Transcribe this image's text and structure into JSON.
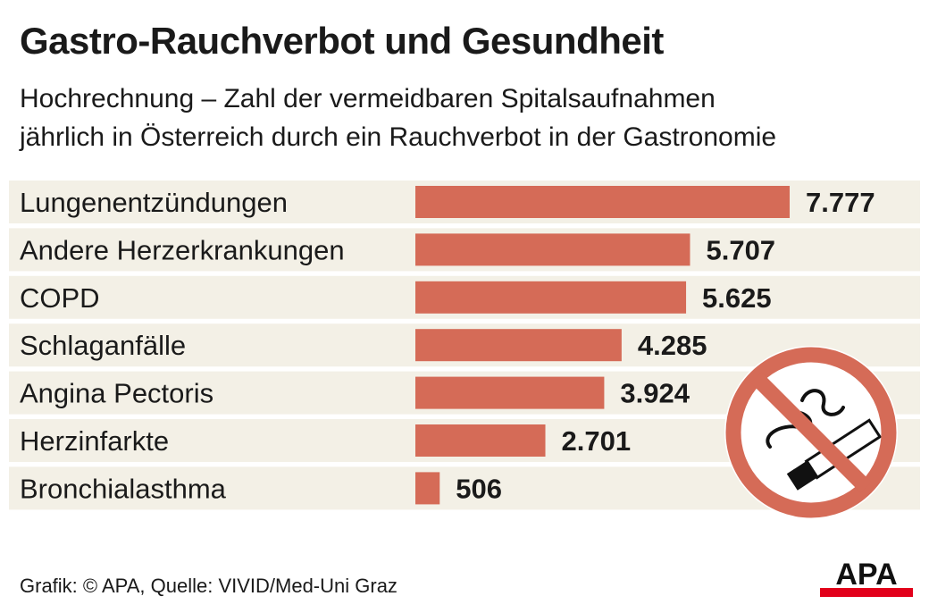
{
  "title": "Gastro-Rauchverbot und Gesundheit",
  "subtitle_line1": "Hochrechnung – Zahl der vermeidbaren Spitalsaufnahmen",
  "subtitle_line2": "jährlich in Österreich durch ein Rauchverbot in der Gastronomie",
  "source": "Grafik: © APA, Quelle: VIVID/Med-Uni Graz",
  "logo_text": "APA",
  "icon": "no-smoking-icon",
  "colors": {
    "bar": "#d56b57",
    "row_band": "#f3f0e6",
    "sign": "#d56b57",
    "logo_red": "#e2001a"
  },
  "chart_data": {
    "type": "bar",
    "orientation": "horizontal",
    "categories": [
      "Lungenentzündungen",
      "Andere Herzerkrankungen",
      "COPD",
      "Schlaganfälle",
      "Angina Pectoris",
      "Herzinfarkte",
      "Bronchialasthma"
    ],
    "values": [
      7777,
      5707,
      5625,
      4285,
      3924,
      2701,
      506
    ],
    "value_labels": [
      "7.777",
      "5.707",
      "5.625",
      "4.285",
      "3.924",
      "2.701",
      "506"
    ],
    "xlim": [
      0,
      7777
    ],
    "grid": false
  }
}
